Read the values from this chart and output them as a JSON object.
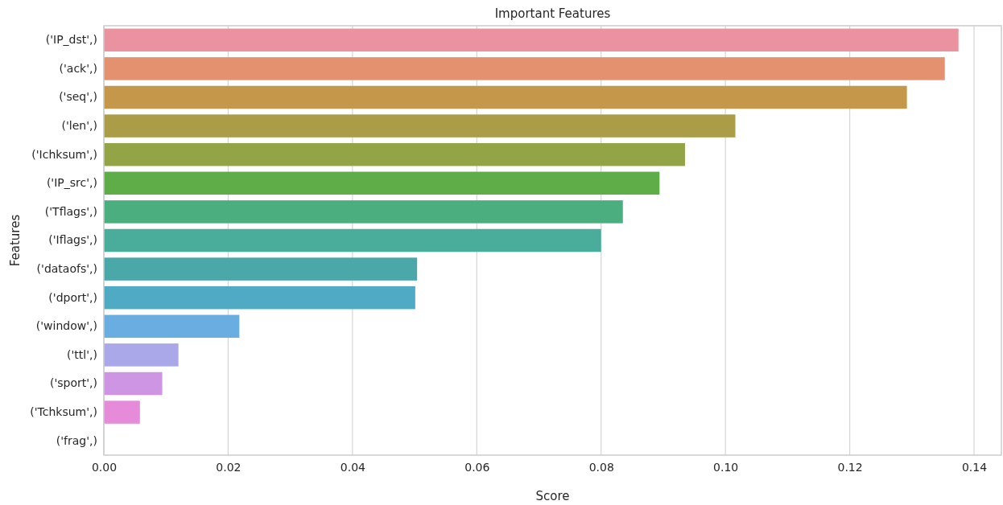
{
  "chart_data": {
    "type": "bar",
    "orientation": "horizontal",
    "title": "Important Features",
    "xlabel": "Score",
    "ylabel": "Features",
    "categories": [
      "('IP_dst',)",
      "('ack',)",
      "('seq',)",
      "('len',)",
      "('Ichksum',)",
      "('IP_src',)",
      "('Tflags',)",
      "('Iflags',)",
      "('dataofs',)",
      "('dport',)",
      "('window',)",
      "('ttl',)",
      "('sport',)",
      "('Tchksum',)",
      "('frag',)"
    ],
    "values": [
      0.1375,
      0.1353,
      0.1292,
      0.1016,
      0.0935,
      0.0894,
      0.0835,
      0.08,
      0.0504,
      0.0501,
      0.0218,
      0.012,
      0.0094,
      0.0058,
      0
    ],
    "colors": [
      "#ea929f",
      "#e3916e",
      "#c4974a",
      "#ab9c47",
      "#93a447",
      "#5fad48",
      "#4aae7f",
      "#4aad9b",
      "#4aa8a9",
      "#4eabc3",
      "#6aade0",
      "#aba8e9",
      "#cf95e5",
      "#e68bd9",
      "#e88fc0"
    ],
    "xlim": [
      0,
      0.1444
    ],
    "xticks": [
      {
        "value": 0,
        "label": "0.00"
      },
      {
        "value": 0.02,
        "label": "0.02"
      },
      {
        "value": 0.04,
        "label": "0.04"
      },
      {
        "value": 0.06,
        "label": "0.06"
      },
      {
        "value": 0.08,
        "label": "0.08"
      },
      {
        "value": 0.1,
        "label": "0.10"
      },
      {
        "value": 0.12,
        "label": "0.12"
      },
      {
        "value": 0.14,
        "label": "0.14"
      }
    ],
    "grid": "x"
  }
}
